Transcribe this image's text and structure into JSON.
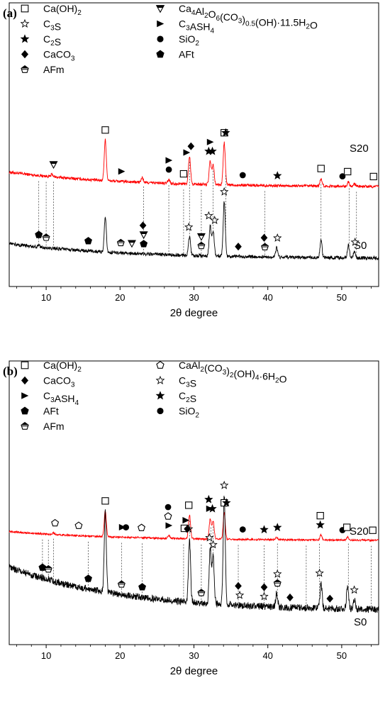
{
  "chart_data": [
    {
      "panel_label": "(a)",
      "type": "line",
      "xlabel": "2θ degree",
      "x_range": [
        5,
        55
      ],
      "x_ticks": [
        10,
        20,
        30,
        40,
        50
      ],
      "x_tick_labels": [
        "10",
        "20",
        "30",
        "40",
        "50"
      ],
      "y_ticks_shown": false,
      "series": [
        {
          "name": "S20",
          "color": "#ff0000",
          "baseline_start": 0.7,
          "baseline_end": 0.4,
          "peaks": [
            [
              10.8,
              0.05
            ],
            [
              18.0,
              0.85
            ],
            [
              23.0,
              0.1
            ],
            [
              26.6,
              0.08
            ],
            [
              29.4,
              0.58
            ],
            [
              32.2,
              0.48
            ],
            [
              32.6,
              0.4
            ],
            [
              34.1,
              0.88
            ],
            [
              47.2,
              0.16
            ],
            [
              50.9,
              0.1
            ],
            [
              51.7,
              0.05
            ]
          ]
        },
        {
          "name": "S0",
          "color": "#000000",
          "baseline_start": 0.45,
          "baseline_end": 0.2,
          "peaks": [
            [
              9.0,
              0.04
            ],
            [
              18.0,
              0.62
            ],
            [
              29.4,
              0.32
            ],
            [
              32.2,
              0.52
            ],
            [
              32.6,
              0.44
            ],
            [
              34.1,
              0.95
            ],
            [
              41.2,
              0.16
            ],
            [
              47.2,
              0.3
            ],
            [
              50.9,
              0.22
            ],
            [
              51.7,
              0.1
            ]
          ]
        }
      ],
      "legend": [
        {
          "symbol": "square-open",
          "label": "Ca(OH)₂"
        },
        {
          "symbol": "star-open",
          "label": "C₃S"
        },
        {
          "symbol": "star-filled",
          "label": "C₂S"
        },
        {
          "symbol": "diamond-filled",
          "label": "CaCO₃"
        },
        {
          "symbol": "pentagon-half",
          "label": "AFm"
        },
        {
          "symbol": "triangle-down-half",
          "label": "Ca₄Al₂O₆(CO₃)₀.₅(OH)·11.5H₂O"
        },
        {
          "symbol": "triangle-right-filled",
          "label": "C₃ASH₄"
        },
        {
          "symbol": "circle-filled",
          "label": "SiO₂"
        },
        {
          "symbol": "pentagon-filled",
          "label": "AFt"
        }
      ],
      "guide_lines_x": [
        9.0,
        10.0,
        11.0,
        23.2,
        26.6,
        28.6,
        29.4,
        31.0,
        32.6,
        34.3,
        39.6,
        47.2,
        51.0,
        52.0
      ],
      "markers": [
        {
          "x": 18.0,
          "series": "S20",
          "symbol": "square-open"
        },
        {
          "x": 11.0,
          "series": "S20",
          "symbol": "triangle-down-half"
        },
        {
          "x": 20.2,
          "series": "S20",
          "symbol": "triangle-right-filled"
        },
        {
          "x": 26.6,
          "series": "S20",
          "symbol": "circle-filled"
        },
        {
          "x": 26.6,
          "series": "S20",
          "symbol": "triangle-right-filled"
        },
        {
          "x": 28.6,
          "series": "S20",
          "symbol": "square-open"
        },
        {
          "x": 29.0,
          "series": "S20",
          "symbol": "triangle-right-filled"
        },
        {
          "x": 29.6,
          "series": "S20",
          "symbol": "diamond-filled"
        },
        {
          "x": 32.0,
          "series": "S20",
          "symbol": "star-filled"
        },
        {
          "x": 32.5,
          "series": "S20",
          "symbol": "star-filled"
        },
        {
          "x": 32.2,
          "series": "S20",
          "symbol": "triangle-right-filled"
        },
        {
          "x": 34.1,
          "series": "S20",
          "symbol": "square-open"
        },
        {
          "x": 34.3,
          "series": "S20",
          "symbol": "star-filled"
        },
        {
          "x": 36.6,
          "series": "S20",
          "symbol": "circle-filled"
        },
        {
          "x": 41.3,
          "series": "S20",
          "symbol": "star-filled"
        },
        {
          "x": 47.2,
          "series": "S20",
          "symbol": "square-open"
        },
        {
          "x": 50.1,
          "series": "S20",
          "symbol": "circle-filled"
        },
        {
          "x": 50.8,
          "series": "S20",
          "symbol": "square-open"
        },
        {
          "x": 54.3,
          "series": "S20",
          "symbol": "square-open"
        },
        {
          "x": 29.3,
          "series": "S0",
          "symbol": "star-open"
        },
        {
          "x": 32.0,
          "series": "S0",
          "symbol": "star-open"
        },
        {
          "x": 32.8,
          "series": "S0",
          "symbol": "star-open"
        },
        {
          "x": 34.1,
          "series": "S0",
          "symbol": "star-open"
        },
        {
          "x": 9.0,
          "series": "S0",
          "symbol": "pentagon-filled"
        },
        {
          "x": 10.0,
          "series": "S0",
          "symbol": "pentagon-half"
        },
        {
          "x": 15.7,
          "series": "S0",
          "symbol": "pentagon-filled"
        },
        {
          "x": 20.1,
          "series": "S0",
          "symbol": "pentagon-half"
        },
        {
          "x": 21.6,
          "series": "S0",
          "symbol": "triangle-down-half"
        },
        {
          "x": 23.2,
          "series": "S0",
          "symbol": "pentagon-filled"
        },
        {
          "x": 23.2,
          "series": "S0",
          "symbol": "triangle-down-half"
        },
        {
          "x": 23.1,
          "series": "S0",
          "symbol": "diamond-filled"
        },
        {
          "x": 31.0,
          "series": "S0",
          "symbol": "pentagon-half"
        },
        {
          "x": 31.0,
          "series": "S0",
          "symbol": "triangle-down-half"
        },
        {
          "x": 36.0,
          "series": "S0",
          "symbol": "diamond-filled"
        },
        {
          "x": 39.6,
          "series": "S0",
          "symbol": "pentagon-half"
        },
        {
          "x": 39.5,
          "series": "S0",
          "symbol": "diamond-filled"
        },
        {
          "x": 41.3,
          "series": "S0",
          "symbol": "star-open"
        },
        {
          "x": 51.8,
          "series": "S0",
          "symbol": "star-open"
        }
      ]
    },
    {
      "panel_label": "(b)",
      "type": "line",
      "xlabel": "2θ degree",
      "x_range": [
        5,
        55
      ],
      "x_ticks": [
        10,
        20,
        30,
        40,
        50
      ],
      "x_tick_labels": [
        "10",
        "20",
        "30",
        "40",
        "50"
      ],
      "y_ticks_shown": false,
      "series": [
        {
          "name": "S20",
          "color": "#ff0000",
          "baseline_start": 0.75,
          "baseline_end": 0.45,
          "peaks": [
            [
              11.0,
              0.05
            ],
            [
              18.0,
              0.9
            ],
            [
              26.6,
              0.1
            ],
            [
              29.4,
              0.82
            ],
            [
              32.2,
              0.7
            ],
            [
              32.6,
              0.62
            ],
            [
              34.1,
              0.92
            ],
            [
              41.2,
              0.08
            ],
            [
              47.2,
              0.18
            ],
            [
              50.8,
              0.1
            ]
          ]
        },
        {
          "name": "S0",
          "color": "#000000",
          "baseline_start": 0.62,
          "baseline_end": 0.25,
          "peaks": [
            [
              18.0,
              0.7
            ],
            [
              29.4,
              0.55
            ],
            [
              32.2,
              0.48
            ],
            [
              32.6,
              0.42
            ],
            [
              34.1,
              0.95
            ],
            [
              41.2,
              0.12
            ],
            [
              47.2,
              0.22
            ],
            [
              50.8,
              0.2
            ],
            [
              51.7,
              0.08
            ]
          ]
        }
      ],
      "legend": [
        {
          "symbol": "square-open",
          "label": "Ca(OH)₂"
        },
        {
          "symbol": "diamond-filled",
          "label": "CaCO₃"
        },
        {
          "symbol": "triangle-right-filled",
          "label": "C₃ASH₄"
        },
        {
          "symbol": "pentagon-filled",
          "label": "AFt"
        },
        {
          "symbol": "pentagon-half",
          "label": "AFm"
        },
        {
          "symbol": "pentagon-open",
          "label": "CaAl₂(CO₃)₂(OH)₄·6H₂O"
        },
        {
          "symbol": "star-open",
          "label": "C₃S"
        },
        {
          "symbol": "star-filled",
          "label": "C₂S"
        },
        {
          "symbol": "circle-filled",
          "label": "SiO₂"
        }
      ],
      "guide_lines_x": [
        9.5,
        10.3,
        11.0,
        15.7,
        20.2,
        23.0,
        28.6,
        29.4,
        31.0,
        32.3,
        32.6,
        36.0,
        39.5,
        41.3,
        45.2,
        47.0,
        50.9,
        54.0
      ],
      "markers": [
        {
          "x": 18.0,
          "series": "S20",
          "symbol": "square-open"
        },
        {
          "x": 11.2,
          "series": "S20",
          "symbol": "pentagon-open"
        },
        {
          "x": 14.4,
          "series": "S20",
          "symbol": "pentagon-open"
        },
        {
          "x": 20.3,
          "series": "S20",
          "symbol": "triangle-right-filled"
        },
        {
          "x": 20.8,
          "series": "S20",
          "symbol": "circle-filled"
        },
        {
          "x": 22.9,
          "series": "S20",
          "symbol": "pentagon-open"
        },
        {
          "x": 26.6,
          "series": "S20",
          "symbol": "triangle-right-filled"
        },
        {
          "x": 26.5,
          "series": "S20",
          "symbol": "pentagon-open"
        },
        {
          "x": 26.5,
          "series": "S20",
          "symbol": "circle-filled"
        },
        {
          "x": 28.7,
          "series": "S20",
          "symbol": "square-open"
        },
        {
          "x": 28.9,
          "series": "S20",
          "symbol": "triangle-right-filled"
        },
        {
          "x": 29.3,
          "series": "S20",
          "symbol": "square-open"
        },
        {
          "x": 32.1,
          "series": "S20",
          "symbol": "triangle-right-filled"
        },
        {
          "x": 32.0,
          "series": "S20",
          "symbol": "star-filled"
        },
        {
          "x": 32.5,
          "series": "S20",
          "symbol": "star-filled"
        },
        {
          "x": 34.1,
          "series": "S20",
          "symbol": "square-open"
        },
        {
          "x": 34.4,
          "series": "S20",
          "symbol": "star-filled"
        },
        {
          "x": 36.6,
          "series": "S20",
          "symbol": "circle-filled"
        },
        {
          "x": 39.5,
          "series": "S20",
          "symbol": "star-filled"
        },
        {
          "x": 41.3,
          "series": "S20",
          "symbol": "star-filled"
        },
        {
          "x": 47.1,
          "series": "S20",
          "symbol": "star-filled"
        },
        {
          "x": 47.1,
          "series": "S20",
          "symbol": "square-open"
        },
        {
          "x": 50.1,
          "series": "S20",
          "symbol": "circle-filled"
        },
        {
          "x": 50.7,
          "series": "S20",
          "symbol": "square-open"
        },
        {
          "x": 54.2,
          "series": "S20",
          "symbol": "square-open"
        },
        {
          "x": 29.3,
          "series": "S0",
          "symbol": "star-open"
        },
        {
          "x": 29.1,
          "series": "S0",
          "symbol": "diamond-filled"
        },
        {
          "x": 32.1,
          "series": "S0",
          "symbol": "star-open"
        },
        {
          "x": 32.6,
          "series": "S0",
          "symbol": "star-open"
        },
        {
          "x": 34.1,
          "series": "S0",
          "symbol": "star-open"
        },
        {
          "x": 9.5,
          "series": "S0",
          "symbol": "pentagon-filled"
        },
        {
          "x": 10.3,
          "series": "S0",
          "symbol": "pentagon-half"
        },
        {
          "x": 15.7,
          "series": "S0",
          "symbol": "pentagon-filled"
        },
        {
          "x": 20.2,
          "series": "S0",
          "symbol": "pentagon-half"
        },
        {
          "x": 23.0,
          "series": "S0",
          "symbol": "pentagon-filled"
        },
        {
          "x": 31.0,
          "series": "S0",
          "symbol": "pentagon-half"
        },
        {
          "x": 36.2,
          "series": "S0",
          "symbol": "star-open"
        },
        {
          "x": 36.0,
          "series": "S0",
          "symbol": "diamond-filled"
        },
        {
          "x": 39.5,
          "series": "S0",
          "symbol": "star-open"
        },
        {
          "x": 39.5,
          "series": "S0",
          "symbol": "diamond-filled"
        },
        {
          "x": 41.3,
          "series": "S0",
          "symbol": "pentagon-half"
        },
        {
          "x": 41.3,
          "series": "S0",
          "symbol": "star-open"
        },
        {
          "x": 43.0,
          "series": "S0",
          "symbol": "diamond-filled"
        },
        {
          "x": 47.0,
          "series": "S0",
          "symbol": "star-open"
        },
        {
          "x": 48.4,
          "series": "S0",
          "symbol": "diamond-filled"
        },
        {
          "x": 51.7,
          "series": "S0",
          "symbol": "star-open"
        }
      ]
    }
  ]
}
